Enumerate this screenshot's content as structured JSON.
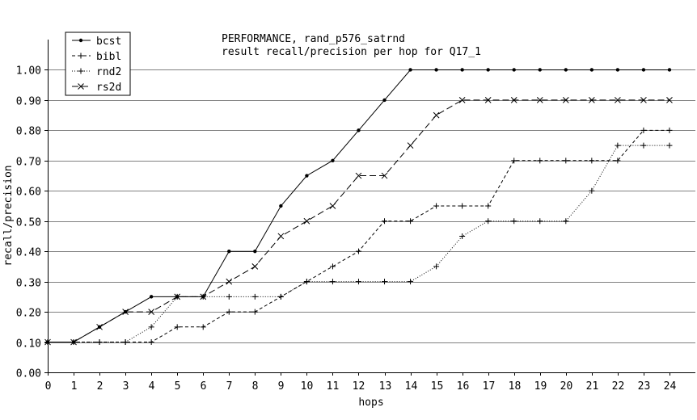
{
  "chart_data": {
    "type": "line",
    "title": [
      "PERFORMANCE, rand_p576_satrnd",
      "result recall/precision per hop for Q17_1"
    ],
    "xlabel": "hops",
    "ylabel": "recall/precision",
    "x": [
      0,
      1,
      2,
      3,
      4,
      5,
      6,
      7,
      8,
      9,
      10,
      11,
      12,
      13,
      14,
      15,
      16,
      17,
      18,
      19,
      20,
      21,
      22,
      23,
      24
    ],
    "x_tick_labels": [
      "0",
      "1",
      "2",
      "3",
      "4",
      "5",
      "6",
      "7",
      "8",
      "9",
      "10",
      "11",
      "12",
      "13",
      "14",
      "15",
      "16",
      "17",
      "18",
      "19",
      "20",
      "21",
      "22",
      "23",
      "24"
    ],
    "y_tick_labels": [
      "0.00",
      "0.10",
      "0.20",
      "0.30",
      "0.40",
      "0.50",
      "0.60",
      "0.70",
      "0.80",
      "0.90",
      "1.00"
    ],
    "xlim": [
      0,
      25
    ],
    "ylim": [
      0,
      1.1
    ],
    "grid": "horizontal",
    "legend_position": "top-left",
    "series": [
      {
        "name": "bcst",
        "dash": "solid",
        "marker": "dot",
        "values": [
          0.1,
          0.1,
          0.15,
          0.2,
          0.25,
          0.25,
          0.25,
          0.4,
          0.4,
          0.55,
          0.65,
          0.7,
          0.8,
          0.9,
          1.0,
          1.0,
          1.0,
          1.0,
          1.0,
          1.0,
          1.0,
          1.0,
          1.0,
          1.0,
          1.0
        ]
      },
      {
        "name": "bibl",
        "dash": "dashed",
        "marker": "plus",
        "values": [
          0.1,
          0.1,
          0.1,
          0.1,
          0.1,
          0.15,
          0.15,
          0.2,
          0.2,
          0.25,
          0.3,
          0.35,
          0.4,
          0.5,
          0.5,
          0.55,
          0.55,
          0.55,
          0.7,
          0.7,
          0.7,
          0.7,
          0.7,
          0.8,
          0.8
        ]
      },
      {
        "name": "rnd2",
        "dash": "dotted",
        "marker": "plus",
        "values": [
          0.1,
          0.1,
          0.1,
          0.1,
          0.15,
          0.25,
          0.25,
          0.25,
          0.25,
          0.25,
          0.3,
          0.3,
          0.3,
          0.3,
          0.3,
          0.35,
          0.45,
          0.5,
          0.5,
          0.5,
          0.5,
          0.6,
          0.75,
          0.75,
          0.75
        ]
      },
      {
        "name": "rs2d",
        "dash": "longdash",
        "marker": "cross",
        "values": [
          0.1,
          0.1,
          0.15,
          0.2,
          0.2,
          0.25,
          0.25,
          0.3,
          0.35,
          0.45,
          0.5,
          0.55,
          0.65,
          0.65,
          0.75,
          0.85,
          0.9,
          0.9,
          0.9,
          0.9,
          0.9,
          0.9,
          0.9,
          0.9,
          0.9
        ]
      }
    ]
  }
}
